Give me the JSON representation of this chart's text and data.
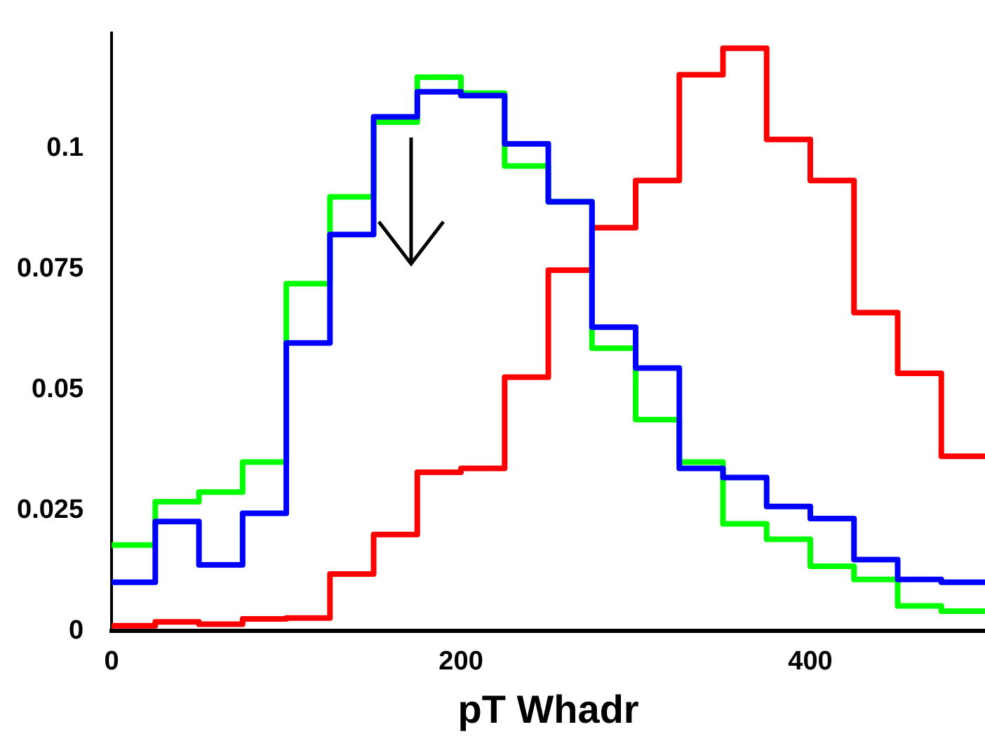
{
  "chart_data": {
    "type": "histogram",
    "xlabel": "pT Whadr",
    "bins": [
      0,
      25,
      50,
      75,
      100,
      125,
      150,
      175,
      200,
      225,
      250,
      275,
      300,
      325,
      350,
      375,
      400,
      425,
      450,
      475,
      500
    ],
    "series": [
      {
        "color": "#0000ff",
        "values": [
          0.0101,
          0.0227,
          0.0137,
          0.0244,
          0.0597,
          0.0822,
          0.1066,
          0.1118,
          0.111,
          0.101,
          0.089,
          0.063,
          0.0545,
          0.0337,
          0.0318,
          0.0258,
          0.0233,
          0.0148,
          0.0107,
          0.0101
        ]
      },
      {
        "color": "#00ff00",
        "values": [
          0.0178,
          0.0268,
          0.0288,
          0.035,
          0.072,
          0.09,
          0.1055,
          0.1148,
          0.1115,
          0.0964,
          0.089,
          0.0586,
          0.0438,
          0.035,
          0.0222,
          0.019,
          0.0134,
          0.0107,
          0.0052,
          0.0041
        ]
      },
      {
        "color": "#ff0000",
        "values": [
          0.0011,
          0.0019,
          0.0014,
          0.0025,
          0.0027,
          0.0118,
          0.02,
          0.0329,
          0.0337,
          0.0526,
          0.0748,
          0.0836,
          0.0934,
          0.1153,
          0.1208,
          0.1019,
          0.0934,
          0.066,
          0.0534,
          0.0362
        ]
      }
    ],
    "xlim": [
      0,
      500
    ],
    "ylim": [
      0,
      0.124
    ],
    "xticks": [
      0,
      200,
      400
    ],
    "yticks": [
      0,
      0.025,
      0.05,
      0.075,
      0.1
    ],
    "grid": false,
    "legend": false
  }
}
